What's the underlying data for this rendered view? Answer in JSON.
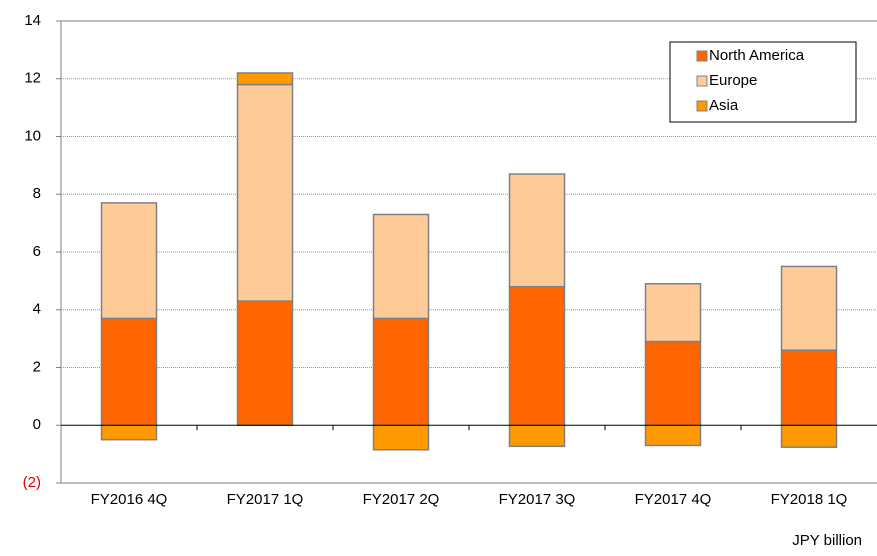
{
  "chart_data": {
    "type": "stacked_bar",
    "unit_note": "JPY billion",
    "categories": [
      "FY2016 4Q",
      "FY2017 1Q",
      "FY2017 2Q",
      "FY2017 3Q",
      "FY2017 4Q",
      "FY2018 1Q"
    ],
    "series": [
      {
        "name": "North America",
        "color": "#ff6600",
        "values": [
          3.7,
          4.3,
          3.7,
          4.8,
          2.9,
          2.6
        ]
      },
      {
        "name": "Europe",
        "color": "#ffcc99",
        "values": [
          4.0,
          7.5,
          3.6,
          3.9,
          2.0,
          2.9
        ]
      },
      {
        "name": "Asia",
        "color": "#ff9900",
        "values": [
          -0.5,
          0.4,
          -0.85,
          -0.73,
          -0.7,
          -0.76
        ]
      }
    ],
    "ylim": [
      -2,
      14
    ],
    "yticks": [
      {
        "value": -2,
        "label": "(2)"
      },
      0,
      2,
      4,
      6,
      8,
      10,
      12,
      14
    ],
    "grid": true,
    "legend": "upper right"
  }
}
